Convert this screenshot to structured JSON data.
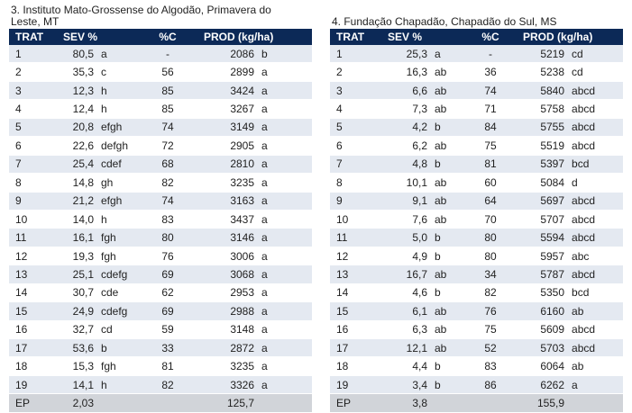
{
  "left": {
    "caption_line1": "3. Instituto Mato-Grossense do Algodão, Primavera do",
    "caption_line2": "Leste, MT",
    "headers": [
      "TRAT",
      "SEV %",
      "%C",
      "PROD (kg/ha)"
    ],
    "rows": [
      {
        "trat": "1",
        "sev": "80,5",
        "sev_l": "a",
        "pc": "-",
        "prod": "2086",
        "prod_l": "b"
      },
      {
        "trat": "2",
        "sev": "35,3",
        "sev_l": "c",
        "pc": "56",
        "prod": "2899",
        "prod_l": "a"
      },
      {
        "trat": "3",
        "sev": "12,3",
        "sev_l": "h",
        "pc": "85",
        "prod": "3424",
        "prod_l": "a"
      },
      {
        "trat": "4",
        "sev": "12,4",
        "sev_l": "h",
        "pc": "85",
        "prod": "3267",
        "prod_l": "a"
      },
      {
        "trat": "5",
        "sev": "20,8",
        "sev_l": "efgh",
        "pc": "74",
        "prod": "3149",
        "prod_l": "a"
      },
      {
        "trat": "6",
        "sev": "22,6",
        "sev_l": "defgh",
        "pc": "72",
        "prod": "2905",
        "prod_l": "a"
      },
      {
        "trat": "7",
        "sev": "25,4",
        "sev_l": "cdef",
        "pc": "68",
        "prod": "2810",
        "prod_l": "a"
      },
      {
        "trat": "8",
        "sev": "14,8",
        "sev_l": "gh",
        "pc": "82",
        "prod": "3235",
        "prod_l": "a"
      },
      {
        "trat": "9",
        "sev": "21,2",
        "sev_l": "efgh",
        "pc": "74",
        "prod": "3163",
        "prod_l": "a"
      },
      {
        "trat": "10",
        "sev": "14,0",
        "sev_l": "h",
        "pc": "83",
        "prod": "3437",
        "prod_l": "a"
      },
      {
        "trat": "11",
        "sev": "16,1",
        "sev_l": "fgh",
        "pc": "80",
        "prod": "3146",
        "prod_l": "a"
      },
      {
        "trat": "12",
        "sev": "19,3",
        "sev_l": "fgh",
        "pc": "76",
        "prod": "3006",
        "prod_l": "a"
      },
      {
        "trat": "13",
        "sev": "25,1",
        "sev_l": "cdefg",
        "pc": "69",
        "prod": "3068",
        "prod_l": "a"
      },
      {
        "trat": "14",
        "sev": "30,7",
        "sev_l": "cde",
        "pc": "62",
        "prod": "2953",
        "prod_l": "a"
      },
      {
        "trat": "15",
        "sev": "24,9",
        "sev_l": "cdefg",
        "pc": "69",
        "prod": "2988",
        "prod_l": "a"
      },
      {
        "trat": "16",
        "sev": "32,7",
        "sev_l": "cd",
        "pc": "59",
        "prod": "3148",
        "prod_l": "a"
      },
      {
        "trat": "17",
        "sev": "53,6",
        "sev_l": "b",
        "pc": "33",
        "prod": "2872",
        "prod_l": "a"
      },
      {
        "trat": "18",
        "sev": "15,3",
        "sev_l": "fgh",
        "pc": "81",
        "prod": "3235",
        "prod_l": "a"
      },
      {
        "trat": "19",
        "sev": "14,1",
        "sev_l": "h",
        "pc": "82",
        "prod": "3326",
        "prod_l": "a"
      }
    ],
    "ep": {
      "trat": "EP",
      "sev": "2,03",
      "sev_l": "",
      "pc": "",
      "prod": "125,7",
      "prod_l": ""
    }
  },
  "right": {
    "caption_line1": "4. Fundação Chapadão, Chapadão do Sul, MS",
    "caption_line2": "",
    "headers": [
      "TRAT",
      "SEV %",
      "%C",
      "PROD (kg/ha)"
    ],
    "rows": [
      {
        "trat": "1",
        "sev": "25,3",
        "sev_l": "a",
        "pc": "-",
        "prod": "5219",
        "prod_l": "cd"
      },
      {
        "trat": "2",
        "sev": "16,3",
        "sev_l": "ab",
        "pc": "36",
        "prod": "5238",
        "prod_l": "cd"
      },
      {
        "trat": "3",
        "sev": "6,6",
        "sev_l": "ab",
        "pc": "74",
        "prod": "5840",
        "prod_l": "abcd"
      },
      {
        "trat": "4",
        "sev": "7,3",
        "sev_l": "ab",
        "pc": "71",
        "prod": "5758",
        "prod_l": "abcd"
      },
      {
        "trat": "5",
        "sev": "4,2",
        "sev_l": "b",
        "pc": "84",
        "prod": "5755",
        "prod_l": "abcd"
      },
      {
        "trat": "6",
        "sev": "6,2",
        "sev_l": "ab",
        "pc": "75",
        "prod": "5519",
        "prod_l": "abcd"
      },
      {
        "trat": "7",
        "sev": "4,8",
        "sev_l": "b",
        "pc": "81",
        "prod": "5397",
        "prod_l": "bcd"
      },
      {
        "trat": "8",
        "sev": "10,1",
        "sev_l": "ab",
        "pc": "60",
        "prod": "5084",
        "prod_l": "d"
      },
      {
        "trat": "9",
        "sev": "9,1",
        "sev_l": "ab",
        "pc": "64",
        "prod": "5697",
        "prod_l": "abcd"
      },
      {
        "trat": "10",
        "sev": "7,6",
        "sev_l": "ab",
        "pc": "70",
        "prod": "5707",
        "prod_l": "abcd"
      },
      {
        "trat": "11",
        "sev": "5,0",
        "sev_l": "b",
        "pc": "80",
        "prod": "5594",
        "prod_l": "abcd"
      },
      {
        "trat": "12",
        "sev": "4,9",
        "sev_l": "b",
        "pc": "80",
        "prod": "5957",
        "prod_l": "abc"
      },
      {
        "trat": "13",
        "sev": "16,7",
        "sev_l": "ab",
        "pc": "34",
        "prod": "5787",
        "prod_l": "abcd"
      },
      {
        "trat": "14",
        "sev": "4,6",
        "sev_l": "b",
        "pc": "82",
        "prod": "5350",
        "prod_l": "bcd"
      },
      {
        "trat": "15",
        "sev": "6,1",
        "sev_l": "ab",
        "pc": "76",
        "prod": "6160",
        "prod_l": "ab"
      },
      {
        "trat": "16",
        "sev": "6,3",
        "sev_l": "ab",
        "pc": "75",
        "prod": "5609",
        "prod_l": "abcd"
      },
      {
        "trat": "17",
        "sev": "12,1",
        "sev_l": "ab",
        "pc": "52",
        "prod": "5703",
        "prod_l": "abcd"
      },
      {
        "trat": "18",
        "sev": "4,4",
        "sev_l": "b",
        "pc": "83",
        "prod": "6064",
        "prod_l": "ab"
      },
      {
        "trat": "19",
        "sev": "3,4",
        "sev_l": "b",
        "pc": "86",
        "prod": "6262",
        "prod_l": "a"
      }
    ],
    "ep": {
      "trat": "EP",
      "sev": "3,8",
      "sev_l": "",
      "pc": "",
      "prod": "155,9",
      "prod_l": ""
    }
  },
  "colors": {
    "header_bg": "#0c2957",
    "stripe": "#e4e9f1",
    "ep_bg": "#d1d4d9"
  }
}
